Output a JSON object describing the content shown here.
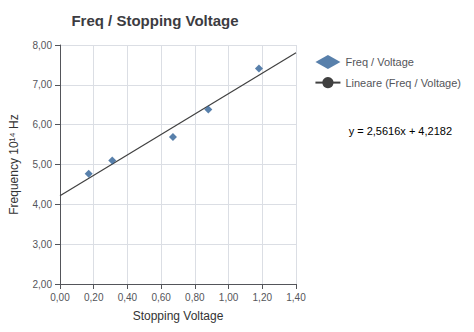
{
  "chart_data": {
    "type": "scatter",
    "title": "Freq / Stopping Voltage",
    "xlabel": "Stopping Voltage",
    "ylabel": "Frequency 10¹⁴ Hz",
    "xlim": [
      0.0,
      1.4
    ],
    "ylim": [
      2.0,
      8.0
    ],
    "xticks": [
      {
        "value": 0.0,
        "label": "0,00"
      },
      {
        "value": 0.2,
        "label": "0,20"
      },
      {
        "value": 0.4,
        "label": "0,40"
      },
      {
        "value": 0.6,
        "label": "0,60"
      },
      {
        "value": 0.8,
        "label": "0,80"
      },
      {
        "value": 1.0,
        "label": "1,00"
      },
      {
        "value": 1.2,
        "label": "1,20"
      },
      {
        "value": 1.4,
        "label": "1,40"
      }
    ],
    "yticks": [
      {
        "value": 2.0,
        "label": "2,00"
      },
      {
        "value": 3.0,
        "label": "3,00"
      },
      {
        "value": 4.0,
        "label": "4,00"
      },
      {
        "value": 5.0,
        "label": "5,00"
      },
      {
        "value": 6.0,
        "label": "6,00"
      },
      {
        "value": 7.0,
        "label": "7,00"
      },
      {
        "value": 8.0,
        "label": "8,00"
      }
    ],
    "grid": true,
    "legend": "right",
    "series": [
      {
        "name": "Freq / Voltage",
        "type": "scatter",
        "marker": "diamond",
        "color": "#2E6096",
        "x": [
          0.17,
          0.31,
          0.67,
          0.88,
          1.18
        ],
        "values": [
          4.77,
          5.1,
          5.69,
          6.38,
          7.41
        ]
      },
      {
        "name": "Lineare (Freq / Voltage)",
        "type": "line",
        "color": "#404040",
        "x": [
          0.0,
          1.4
        ],
        "values": [
          4.2182,
          7.80444
        ]
      }
    ],
    "annotations": [
      "y = 2,5616x + 4,2182"
    ]
  }
}
